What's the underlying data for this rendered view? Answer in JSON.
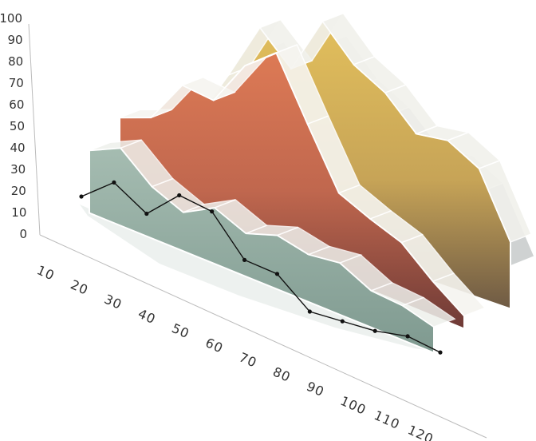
{
  "chart_data": {
    "type": "area",
    "view": "3d-perspective",
    "title": "",
    "xlabel": "",
    "ylabel": "",
    "x": [
      10,
      20,
      30,
      40,
      50,
      60,
      70,
      80,
      90,
      100,
      110,
      120
    ],
    "x_ticks": [
      "10",
      "20",
      "30",
      "40",
      "50",
      "60",
      "70",
      "80",
      "90",
      "100",
      "110",
      "120"
    ],
    "y_ticks": [
      "0",
      "10",
      "20",
      "30",
      "40",
      "50",
      "60",
      "70",
      "80",
      "90",
      "100"
    ],
    "ylim": [
      0,
      100
    ],
    "grid": false,
    "legend": "none",
    "series": [
      {
        "kind": "area",
        "depth": "back",
        "color": "#d9b65a",
        "values": [
          28,
          30,
          55,
          82,
          68,
          95,
          80,
          72,
          58,
          60,
          52,
          23
        ]
      },
      {
        "kind": "area",
        "depth": "middle",
        "color": "#d06f52",
        "values": [
          24,
          30,
          51,
          50,
          72,
          84,
          57,
          31,
          25,
          20,
          8,
          -2
        ]
      },
      {
        "kind": "area",
        "depth": "front",
        "color": "#9ab3a8",
        "values": [
          21,
          28,
          16,
          10,
          18,
          12,
          17,
          14,
          16,
          9,
          8,
          4
        ]
      },
      {
        "kind": "line",
        "depth": "front",
        "color": "#111111",
        "values": [
          20,
          31,
          21,
          34,
          31,
          13,
          11,
          -2,
          -2,
          -2,
          0,
          -3
        ]
      }
    ]
  }
}
